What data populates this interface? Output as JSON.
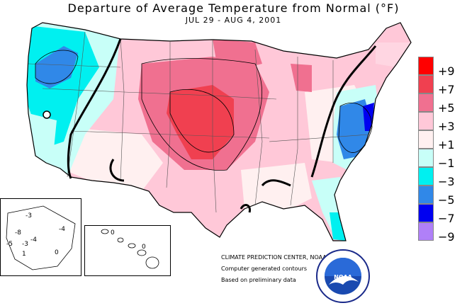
{
  "header": {
    "title": "Departure of Average Temperature from Normal (°F)",
    "date_range": "JUL 29 - AUG  4, 2001"
  },
  "legend": {
    "items": [
      {
        "label": "+9",
        "color": "#ff0000"
      },
      {
        "label": "+7",
        "color": "#f04050"
      },
      {
        "label": "+5",
        "color": "#f07090"
      },
      {
        "label": "+3",
        "color": "#ffc8d8"
      },
      {
        "label": "+1",
        "color": "#fff0f0"
      },
      {
        "label": "−1",
        "color": "#c8fff8"
      },
      {
        "label": "−3",
        "color": "#00f0f0"
      },
      {
        "label": "−5",
        "color": "#3088e8"
      },
      {
        "label": "−7",
        "color": "#0000f0"
      },
      {
        "label": "−9",
        "color": "#b080f8"
      }
    ]
  },
  "alaska_inset": {
    "contour_labels": [
      "-3",
      "-8",
      "-4",
      "-4",
      "-3",
      "0",
      "-5",
      "1"
    ]
  },
  "hawaii_inset": {
    "contour_labels": [
      "0",
      "0"
    ]
  },
  "credits": {
    "line1": "CLIMATE PREDICTION CENTER, NOAA",
    "line2": "Computer generated contours",
    "line3": "Based on preliminary data"
  },
  "logo": {
    "text": "NOAA",
    "ring_text": "NATIONAL OCEANIC AND ATMOSPHERIC ADMINISTRATION · U.S. DEPARTMENT OF COMMERCE"
  }
}
